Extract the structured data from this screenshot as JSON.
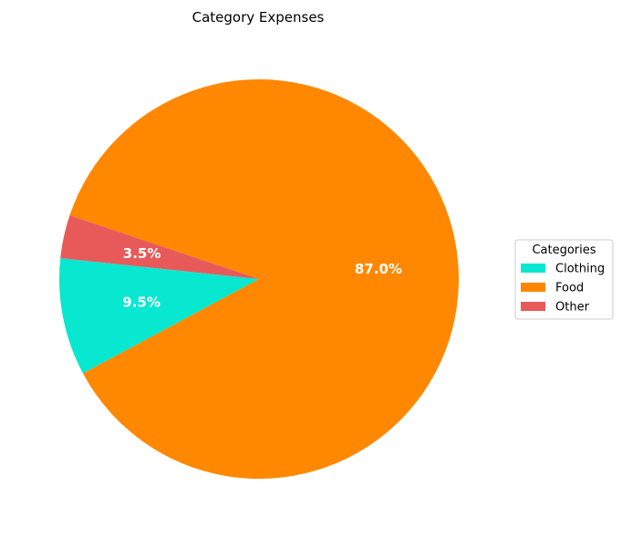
{
  "chart_data": {
    "type": "pie",
    "title": "Category Expenses",
    "categories": [
      "Clothing",
      "Food",
      "Other"
    ],
    "values": [
      9.5,
      87.0,
      3.5
    ],
    "labels": [
      "9.5%",
      "87.0%",
      "3.5%"
    ],
    "colors": [
      "#08e8d0",
      "#ff8800",
      "#e85a5a"
    ],
    "start_angle_deg": 174,
    "direction": "counterclockwise",
    "legend": {
      "title": "Categories",
      "placement": "center-right"
    }
  }
}
